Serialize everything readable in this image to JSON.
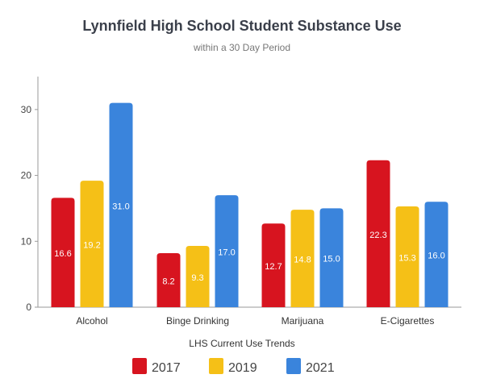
{
  "chart_data": {
    "type": "bar",
    "title": "Lynnfield High School Student Substance Use",
    "subtitle": "within a 30 Day Period",
    "xlabel": "LHS Current Use Trends",
    "ylabel": "",
    "ylim": [
      0,
      35
    ],
    "yticks": [
      0,
      10,
      20,
      30
    ],
    "grid": false,
    "legend_position": "bottom",
    "categories": [
      "Alcohol",
      "Binge Drinking",
      "Marijuana",
      "E-Cigarettes"
    ],
    "series": [
      {
        "name": "2017",
        "color": "#d7141f",
        "values": [
          16.6,
          8.2,
          12.7,
          22.3
        ],
        "labels": [
          "16.6",
          "8.2",
          "12.7",
          "22.3"
        ]
      },
      {
        "name": "2019",
        "color": "#f5c017",
        "values": [
          19.2,
          9.3,
          14.8,
          15.3
        ],
        "labels": [
          "19.2",
          "9.3",
          "14.8",
          "15.3"
        ]
      },
      {
        "name": "2021",
        "color": "#3a84dc",
        "values": [
          31.0,
          17.0,
          15.0,
          16.0
        ],
        "labels": [
          "31.0",
          "17.0",
          "15.0",
          "16.0"
        ]
      }
    ]
  }
}
